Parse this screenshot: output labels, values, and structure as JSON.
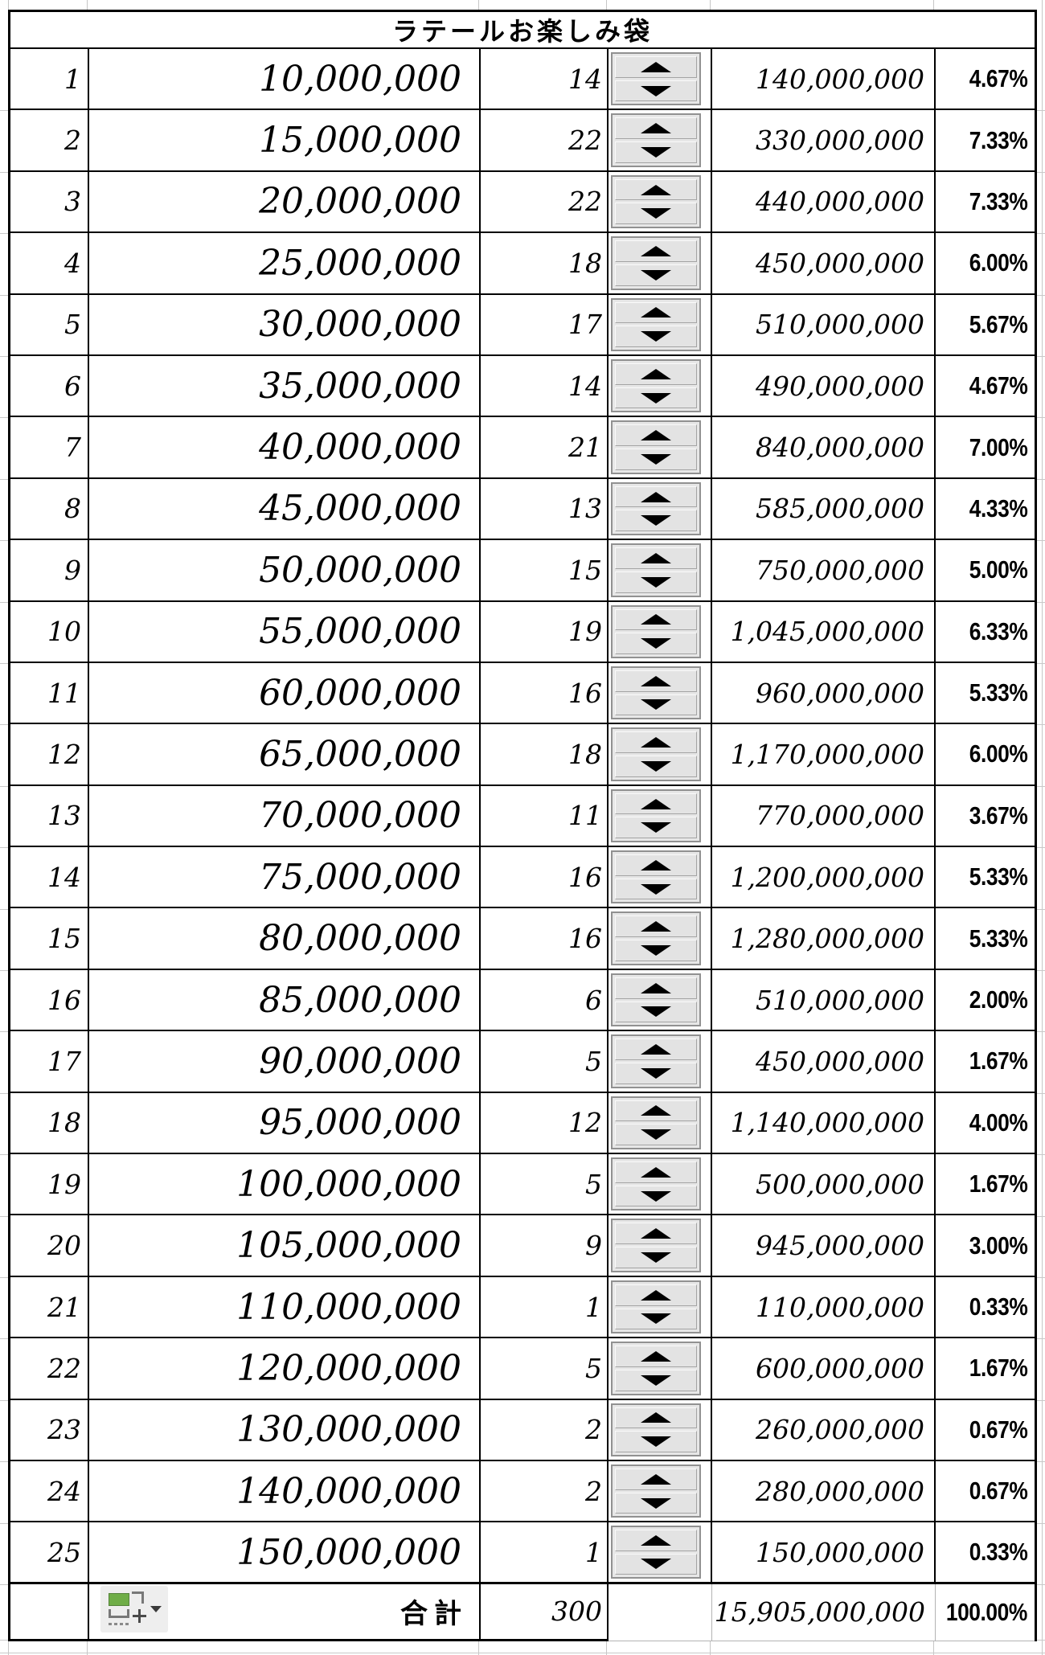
{
  "title": "ラテールお楽しみ袋",
  "rows": [
    {
      "no": "1",
      "amount": "10,000,000",
      "count": "14",
      "total": "140,000,000",
      "percent": "4.67%"
    },
    {
      "no": "2",
      "amount": "15,000,000",
      "count": "22",
      "total": "330,000,000",
      "percent": "7.33%"
    },
    {
      "no": "3",
      "amount": "20,000,000",
      "count": "22",
      "total": "440,000,000",
      "percent": "7.33%"
    },
    {
      "no": "4",
      "amount": "25,000,000",
      "count": "18",
      "total": "450,000,000",
      "percent": "6.00%"
    },
    {
      "no": "5",
      "amount": "30,000,000",
      "count": "17",
      "total": "510,000,000",
      "percent": "5.67%"
    },
    {
      "no": "6",
      "amount": "35,000,000",
      "count": "14",
      "total": "490,000,000",
      "percent": "4.67%"
    },
    {
      "no": "7",
      "amount": "40,000,000",
      "count": "21",
      "total": "840,000,000",
      "percent": "7.00%"
    },
    {
      "no": "8",
      "amount": "45,000,000",
      "count": "13",
      "total": "585,000,000",
      "percent": "4.33%"
    },
    {
      "no": "9",
      "amount": "50,000,000",
      "count": "15",
      "total": "750,000,000",
      "percent": "5.00%"
    },
    {
      "no": "10",
      "amount": "55,000,000",
      "count": "19",
      "total": "1,045,000,000",
      "percent": "6.33%"
    },
    {
      "no": "11",
      "amount": "60,000,000",
      "count": "16",
      "total": "960,000,000",
      "percent": "5.33%"
    },
    {
      "no": "12",
      "amount": "65,000,000",
      "count": "18",
      "total": "1,170,000,000",
      "percent": "6.00%"
    },
    {
      "no": "13",
      "amount": "70,000,000",
      "count": "11",
      "total": "770,000,000",
      "percent": "3.67%"
    },
    {
      "no": "14",
      "amount": "75,000,000",
      "count": "16",
      "total": "1,200,000,000",
      "percent": "5.33%"
    },
    {
      "no": "15",
      "amount": "80,000,000",
      "count": "16",
      "total": "1,280,000,000",
      "percent": "5.33%"
    },
    {
      "no": "16",
      "amount": "85,000,000",
      "count": "6",
      "total": "510,000,000",
      "percent": "2.00%"
    },
    {
      "no": "17",
      "amount": "90,000,000",
      "count": "5",
      "total": "450,000,000",
      "percent": "1.67%"
    },
    {
      "no": "18",
      "amount": "95,000,000",
      "count": "12",
      "total": "1,140,000,000",
      "percent": "4.00%"
    },
    {
      "no": "19",
      "amount": "100,000,000",
      "count": "5",
      "total": "500,000,000",
      "percent": "1.67%"
    },
    {
      "no": "20",
      "amount": "105,000,000",
      "count": "9",
      "total": "945,000,000",
      "percent": "3.00%"
    },
    {
      "no": "21",
      "amount": "110,000,000",
      "count": "1",
      "total": "110,000,000",
      "percent": "0.33%"
    },
    {
      "no": "22",
      "amount": "120,000,000",
      "count": "5",
      "total": "600,000,000",
      "percent": "1.67%"
    },
    {
      "no": "23",
      "amount": "130,000,000",
      "count": "2",
      "total": "260,000,000",
      "percent": "0.67%"
    },
    {
      "no": "24",
      "amount": "140,000,000",
      "count": "2",
      "total": "280,000,000",
      "percent": "0.67%"
    },
    {
      "no": "25",
      "amount": "150,000,000",
      "count": "1",
      "total": "150,000,000",
      "percent": "0.33%"
    }
  ],
  "summary": {
    "label": "合計",
    "count": "300",
    "total": "15,905,000,000",
    "percent": "100.00%"
  },
  "icons": {
    "spinner_up": "up-arrow-triangle",
    "spinner_down": "down-arrow-triangle",
    "smart_tag": "auto-fill-options-icon",
    "smart_tag_dropdown": "dropdown-arrow"
  },
  "colors": {
    "border_black": "#000000",
    "gridline_gray": "#c6c6c6",
    "spinner_face": "#e3e3e3",
    "smart_tag_green": "#6fad47",
    "text": "#000000"
  }
}
